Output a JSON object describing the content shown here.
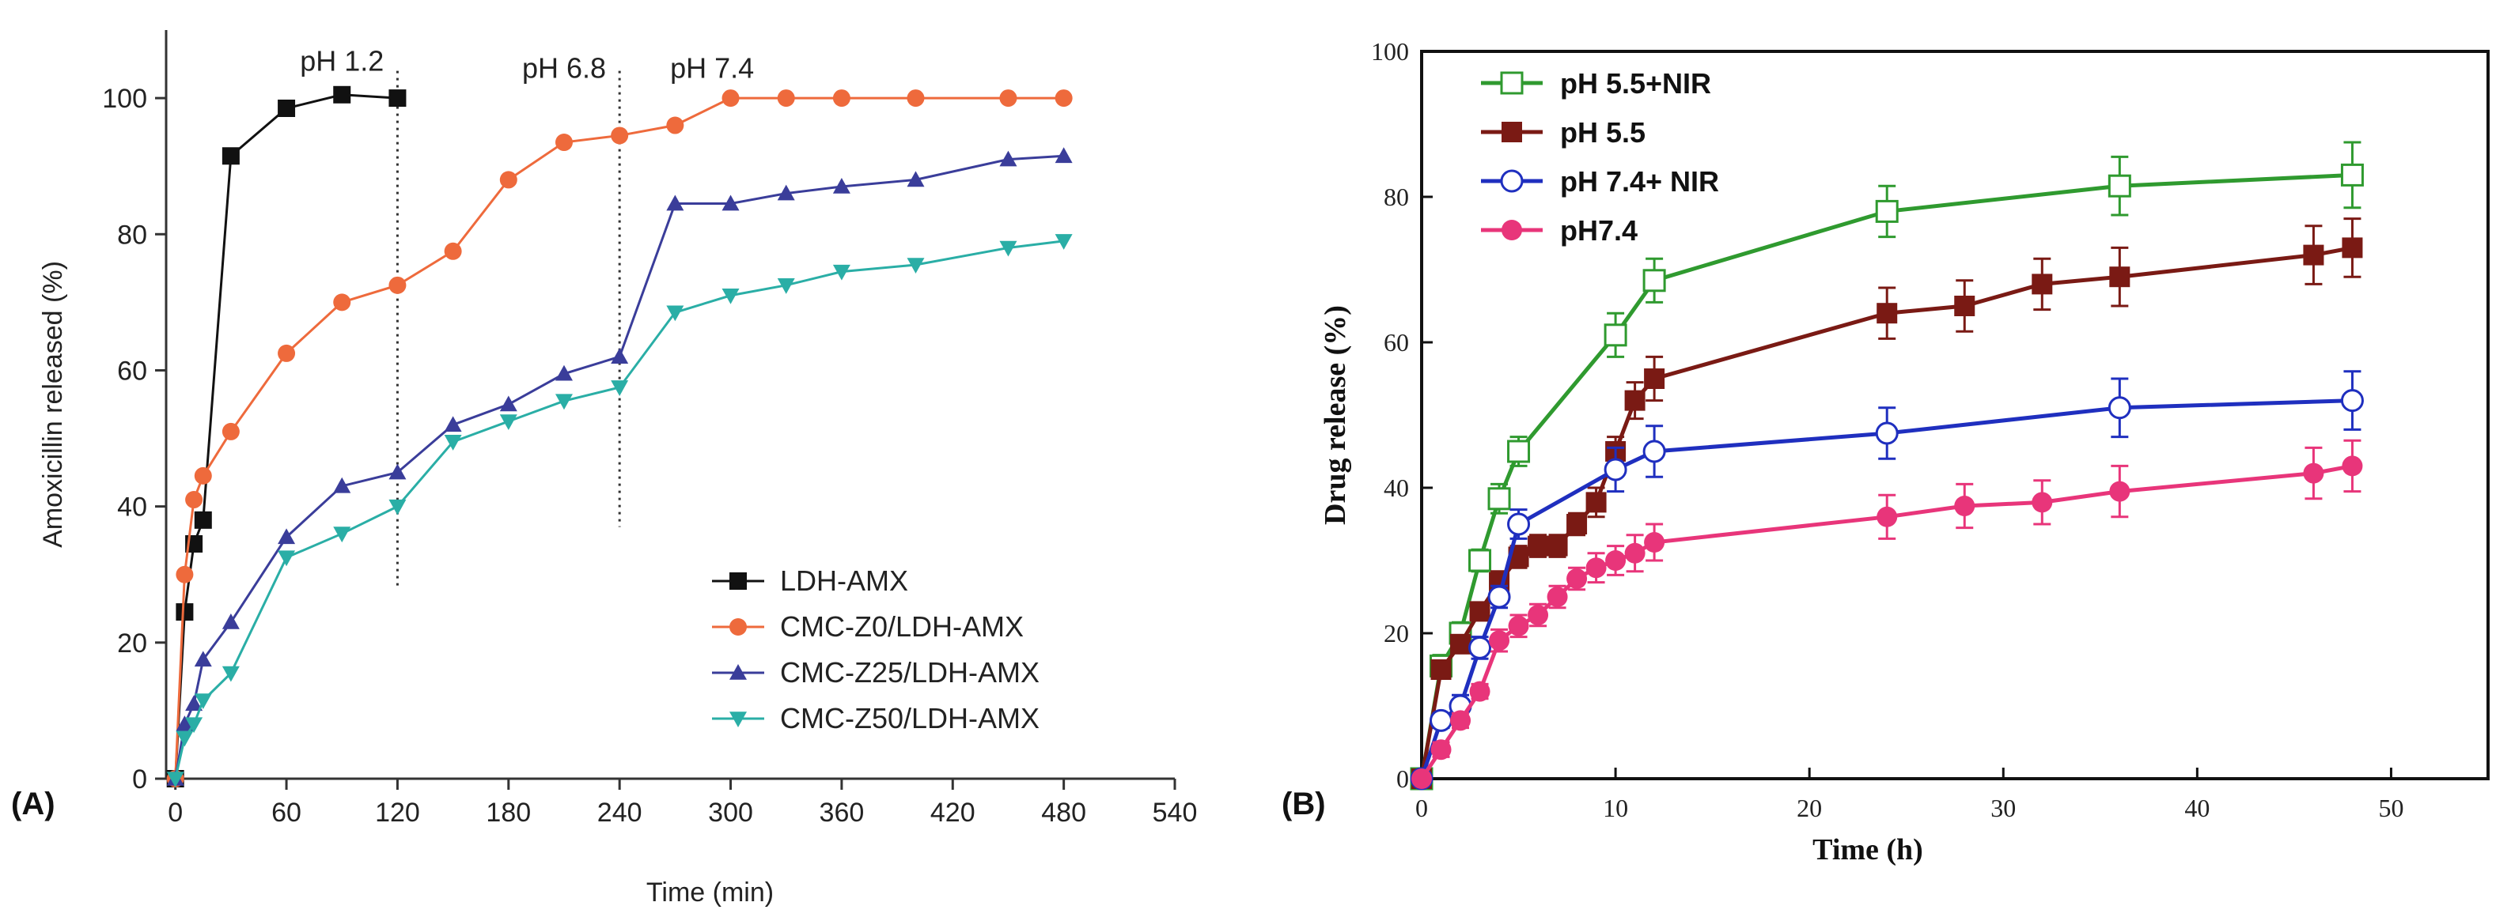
{
  "chart_data": [
    {
      "type": "line",
      "panel_label": "(A)",
      "title": "",
      "xlabel": "Time (min)",
      "ylabel": "Amoxicillin released (%)",
      "xlim": [
        -5,
        540
      ],
      "ylim": [
        0,
        110
      ],
      "xticks": [
        0,
        60,
        120,
        180,
        240,
        300,
        360,
        420,
        480,
        540
      ],
      "yticks": [
        0,
        20,
        40,
        60,
        80,
        100
      ],
      "grid": false,
      "legend_position": "bottom-right",
      "annotations": [
        {
          "text": "pH 1.2",
          "x": 90,
          "y": 104
        },
        {
          "text": "pH 6.8",
          "x": 210,
          "y": 103
        },
        {
          "text": "pH 7.4",
          "x": 290,
          "y": 103
        }
      ],
      "vlines": [
        {
          "x": 120,
          "y_from": 28,
          "y_to": 104
        },
        {
          "x": 240,
          "y_from": 37,
          "y_to": 104
        }
      ],
      "series": [
        {
          "name": "LDH-AMX",
          "color": "#111111",
          "marker": "square",
          "x": [
            0,
            5,
            10,
            15,
            30,
            60,
            90,
            120
          ],
          "y": [
            0,
            24.5,
            34.5,
            38,
            91.5,
            98.5,
            100.5,
            100
          ]
        },
        {
          "name": "CMC-Z0/LDH-AMX",
          "color": "#ee6a3c",
          "marker": "circle",
          "x": [
            0,
            5,
            10,
            15,
            30,
            60,
            90,
            120,
            150,
            180,
            210,
            240,
            270,
            300,
            330,
            360,
            400,
            450,
            480
          ],
          "y": [
            0,
            30,
            41,
            44.5,
            51,
            62.5,
            70,
            72.5,
            77.5,
            88,
            93.5,
            94.5,
            96,
            100,
            100,
            100,
            100,
            100,
            100
          ]
        },
        {
          "name": "CMC-Z25/LDH-AMX",
          "color": "#3a3d9a",
          "marker": "triangle-up",
          "x": [
            0,
            5,
            10,
            15,
            30,
            60,
            90,
            120,
            150,
            180,
            210,
            240,
            270,
            300,
            330,
            360,
            400,
            450,
            480
          ],
          "y": [
            0,
            8,
            11,
            17.5,
            23,
            35.5,
            43,
            45,
            52,
            55,
            59.5,
            62,
            84.5,
            84.5,
            86,
            87,
            88,
            91,
            91.5
          ]
        },
        {
          "name": "CMC-Z50/LDH-AMX",
          "color": "#2aaea6",
          "marker": "triangle-down",
          "x": [
            0,
            5,
            10,
            15,
            30,
            60,
            90,
            120,
            150,
            180,
            210,
            240,
            270,
            300,
            330,
            360,
            400,
            450,
            480
          ],
          "y": [
            0,
            6,
            8,
            11.5,
            15.5,
            32.5,
            36,
            40,
            49.5,
            52.5,
            55.5,
            57.5,
            68.5,
            71,
            72.5,
            74.5,
            75.5,
            78,
            79
          ]
        }
      ]
    },
    {
      "type": "line",
      "panel_label": "(B)",
      "title": "",
      "xlabel": "Time (h)",
      "ylabel": "Drug release  (%)",
      "xlim": [
        0,
        55
      ],
      "ylim": [
        0,
        100
      ],
      "xticks": [
        0,
        10,
        20,
        30,
        40,
        50
      ],
      "yticks": [
        0,
        20,
        40,
        60,
        80,
        100
      ],
      "grid": false,
      "legend_position": "top-left",
      "series": [
        {
          "name": "pH 5.5+NIR",
          "color": "#2f9a2f",
          "marker": "open-square",
          "x": [
            0,
            1,
            2,
            3,
            4,
            5,
            10,
            12,
            24,
            36,
            48
          ],
          "y": [
            0,
            15.5,
            20,
            30,
            38.5,
            45,
            61,
            68.5,
            78,
            81.5,
            83
          ],
          "err": [
            0,
            1.5,
            1.5,
            1.5,
            2,
            2,
            3,
            3,
            3.5,
            4,
            4.5
          ]
        },
        {
          "name": "pH 5.5",
          "color": "#7a1a14",
          "marker": "square",
          "x": [
            0,
            1,
            2,
            3,
            4,
            5,
            6,
            7,
            8,
            9,
            10,
            11,
            12,
            24,
            28,
            32,
            36,
            46,
            48
          ],
          "y": [
            0,
            15,
            18.5,
            23,
            27,
            30.5,
            32,
            32,
            35,
            38,
            45,
            52,
            55,
            64,
            65,
            68,
            69,
            72,
            73
          ],
          "err": [
            0,
            1,
            1,
            1,
            1.5,
            1.5,
            1.5,
            1.5,
            1.5,
            2,
            2,
            2.5,
            3,
            3.5,
            3.5,
            3.5,
            4,
            4,
            4
          ]
        },
        {
          "name": "pH 7.4+ NIR",
          "color": "#1f2fbf",
          "marker": "open-circle",
          "x": [
            0,
            1,
            2,
            3,
            4,
            5,
            10,
            12,
            24,
            36,
            48
          ],
          "y": [
            0,
            8,
            10,
            18,
            25,
            35,
            42.5,
            45,
            47.5,
            51,
            52
          ],
          "err": [
            0,
            1,
            1.5,
            1.5,
            1.5,
            2,
            3,
            3.5,
            3.5,
            4,
            4
          ]
        },
        {
          "name": "pH7.4",
          "color": "#e8357a",
          "marker": "circle",
          "x": [
            0,
            1,
            2,
            3,
            4,
            5,
            6,
            7,
            8,
            9,
            10,
            11,
            12,
            24,
            28,
            32,
            36,
            46,
            48
          ],
          "y": [
            0,
            4,
            8,
            12,
            19,
            21,
            22.5,
            25,
            27.5,
            29,
            30,
            31,
            32.5,
            36,
            37.5,
            38,
            39.5,
            42,
            43
          ],
          "err": [
            0,
            1,
            1,
            1,
            1.5,
            1.5,
            1.5,
            1.5,
            1.5,
            2,
            2,
            2.5,
            2.5,
            3,
            3,
            3,
            3.5,
            3.5,
            3.5
          ]
        }
      ]
    }
  ]
}
